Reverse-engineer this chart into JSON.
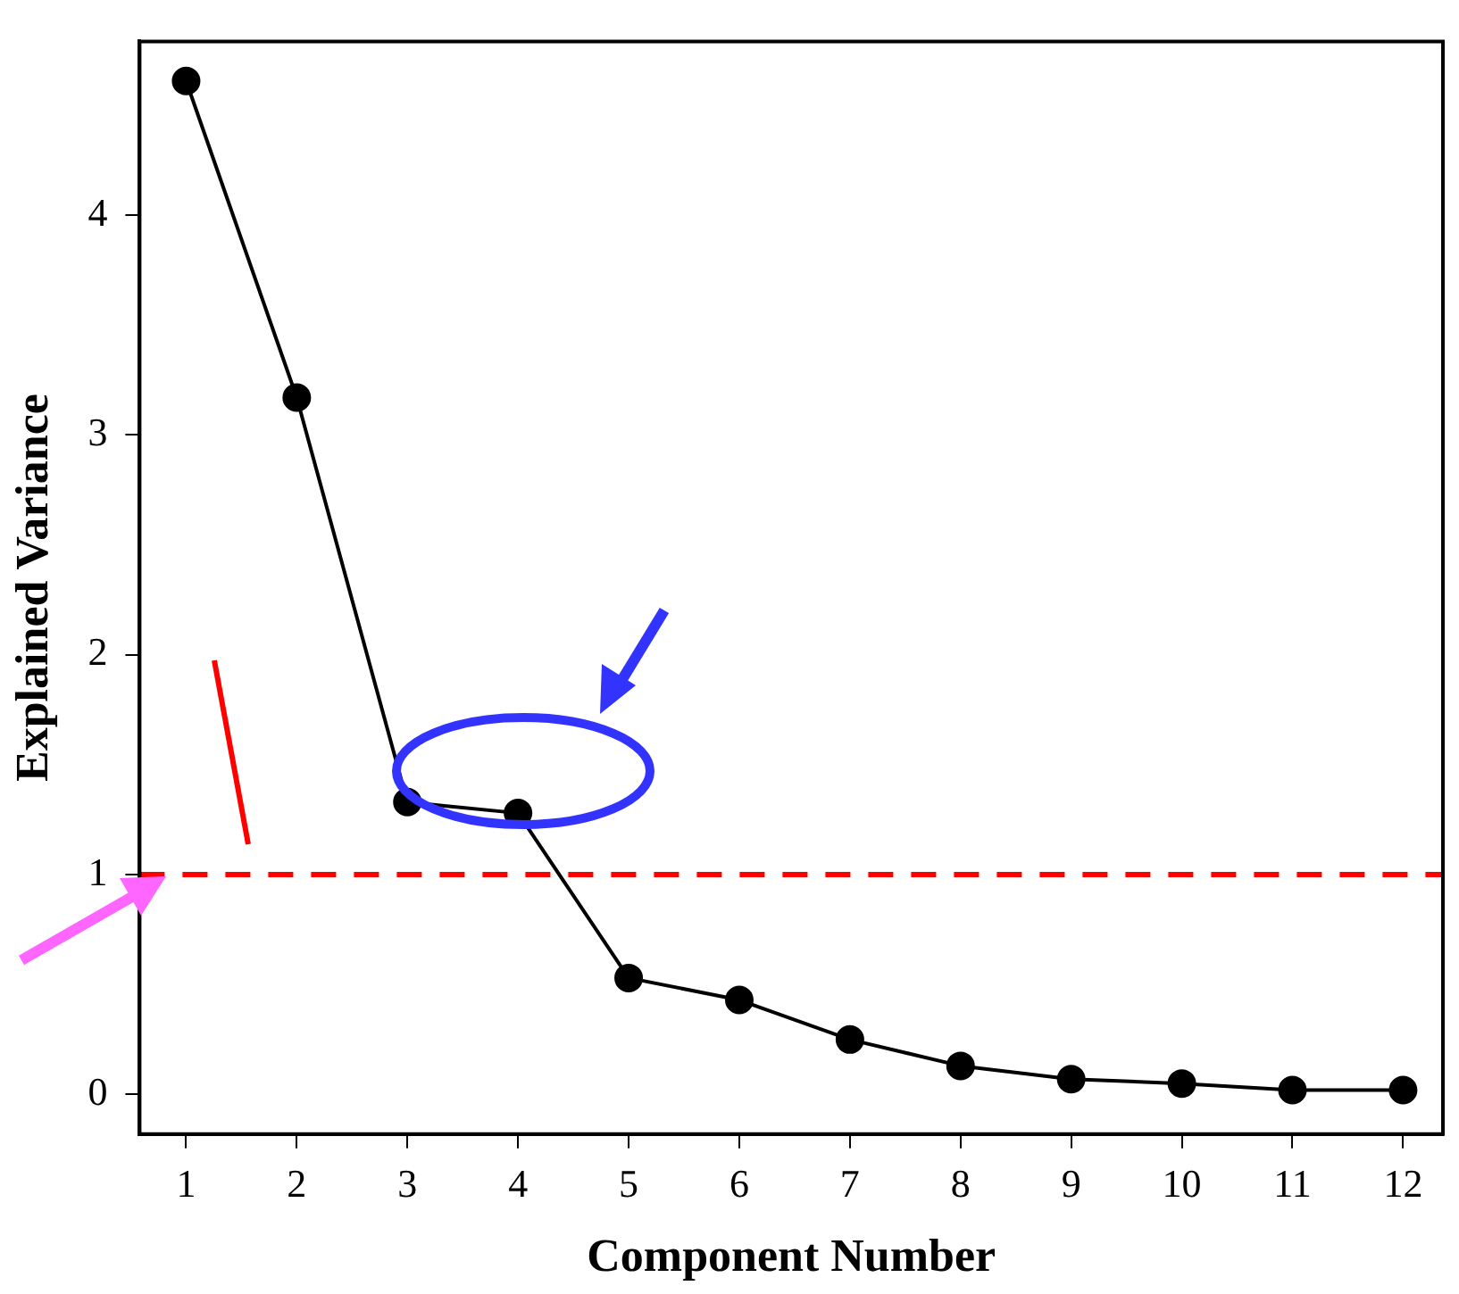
{
  "chart_data": {
    "type": "line",
    "xlabel": "Component Number",
    "ylabel": "Explained Variance",
    "x": [
      1,
      2,
      3,
      4,
      5,
      6,
      7,
      8,
      9,
      10,
      11,
      12
    ],
    "series": [
      {
        "color": "#000000",
        "values": [
          4.61,
          3.17,
          1.33,
          1.28,
          0.53,
          0.43,
          0.25,
          0.13,
          0.07,
          0.05,
          0.02,
          0.02
        ]
      }
    ],
    "xlim": [
      0.58,
      12.36
    ],
    "xticks": [
      1,
      2,
      3,
      4,
      5,
      6,
      7,
      8,
      9,
      10,
      11,
      12
    ],
    "ylim": [
      -0.18,
      4.79
    ],
    "yticks": [
      0,
      1,
      2,
      3,
      4
    ],
    "ref_lines": [
      {
        "axis": "y",
        "value": 1,
        "color": "#ff0000",
        "line_style": "dashed"
      }
    ],
    "marker": "circle",
    "line_style": "solid",
    "grid": false,
    "legend": false
  }
}
